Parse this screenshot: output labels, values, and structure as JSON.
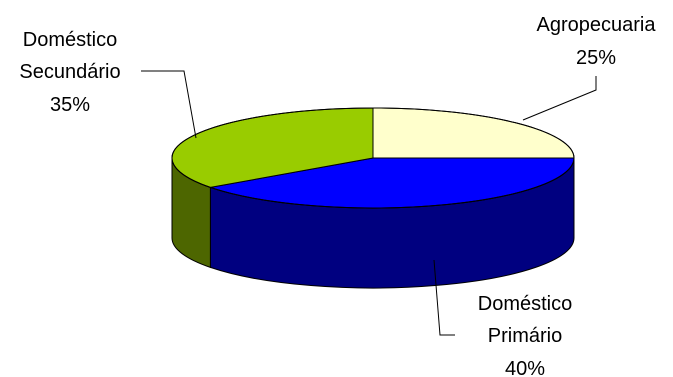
{
  "chart_data": {
    "type": "pie",
    "style": "3d",
    "slices": [
      {
        "key": "agro",
        "label_lines": [
          "Agropecuaria"
        ],
        "percent_label": "25%",
        "value": 25,
        "color": "#ffffcc",
        "side_color": "#cccca3"
      },
      {
        "key": "prim",
        "label_lines": [
          "Doméstico",
          "Primário"
        ],
        "percent_label": "40%",
        "value": 40,
        "color": "#0000ff",
        "side_color": "#000080"
      },
      {
        "key": "sec",
        "label_lines": [
          "Doméstico",
          "Secundário"
        ],
        "percent_label": "35%",
        "value": 35,
        "color": "#99cc00",
        "side_color": "#4d6600"
      }
    ]
  }
}
